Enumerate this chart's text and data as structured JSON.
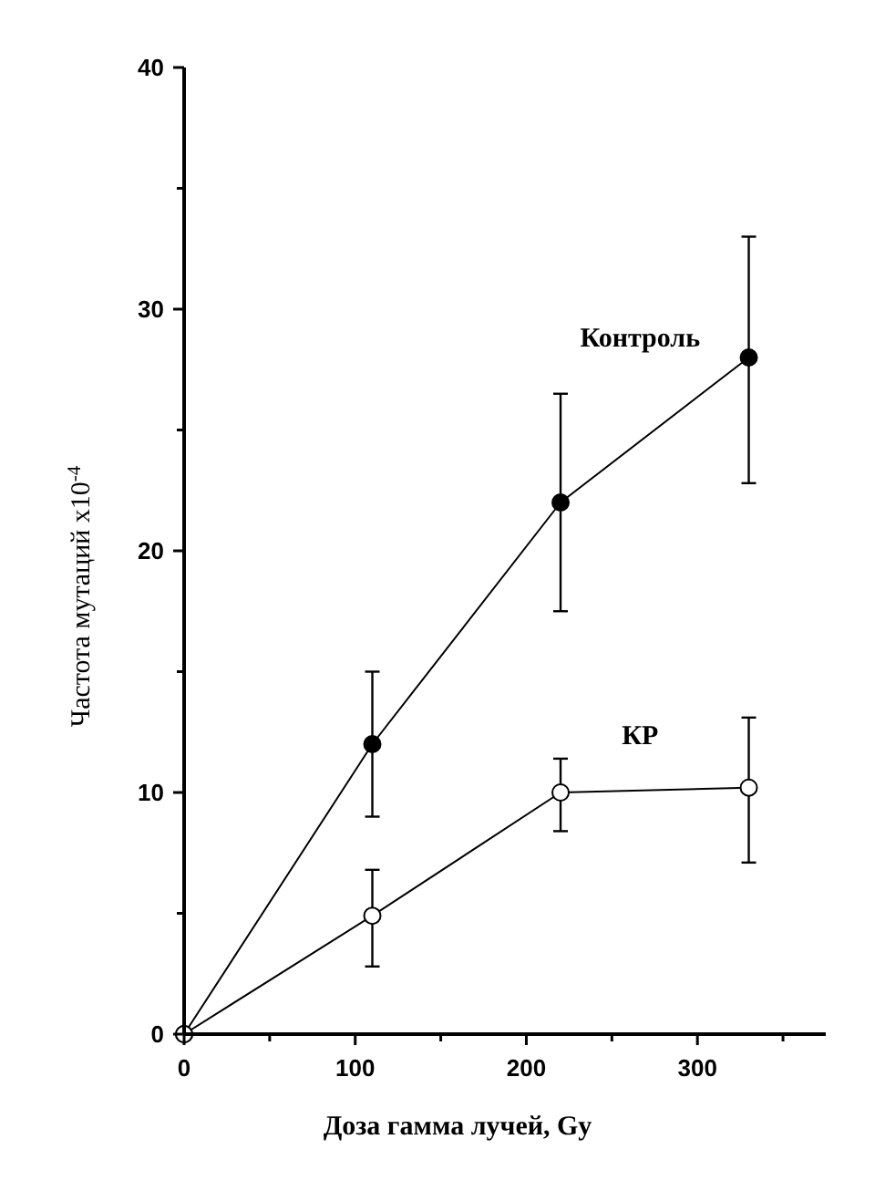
{
  "chart_data": {
    "type": "line",
    "xlabel": "Доза гамма лучей, Gy",
    "ylabel": "Частота мутаций x10$^{-4}$",
    "x": [
      0,
      110,
      220,
      330
    ],
    "xlim": [
      0,
      375
    ],
    "xticks": [
      0,
      {
        "value": 50,
        "label": null
      },
      100,
      {
        "value": 150,
        "label": null
      },
      200,
      {
        "value": 250,
        "label": null
      },
      300,
      {
        "value": 350,
        "label": null
      }
    ],
    "ylim": [
      0,
      40
    ],
    "yticks": [
      0,
      {
        "value": 5,
        "label": null
      },
      10,
      {
        "value": 15,
        "label": null
      },
      20,
      {
        "value": 25,
        "label": null
      },
      30,
      {
        "value": 35,
        "label": null
      },
      40
    ],
    "marker": "circle",
    "legend": false,
    "series": [
      {
        "name": "Контроль",
        "color": "#000000",
        "values": [
          0,
          12,
          22,
          28
        ],
        "errors": [
          null,
          [
            9,
            15
          ],
          [
            17.5,
            26.5
          ],
          [
            22.8,
            33
          ]
        ]
      },
      {
        "name": "КР",
        "color": "#000000",
        "values": [
          0,
          4.9,
          10,
          10.2
        ],
        "errors": [
          null,
          [
            2.8,
            6.8
          ],
          [
            8.4,
            11.4
          ],
          [
            7.1,
            13.1
          ]
        ]
      }
    ]
  }
}
